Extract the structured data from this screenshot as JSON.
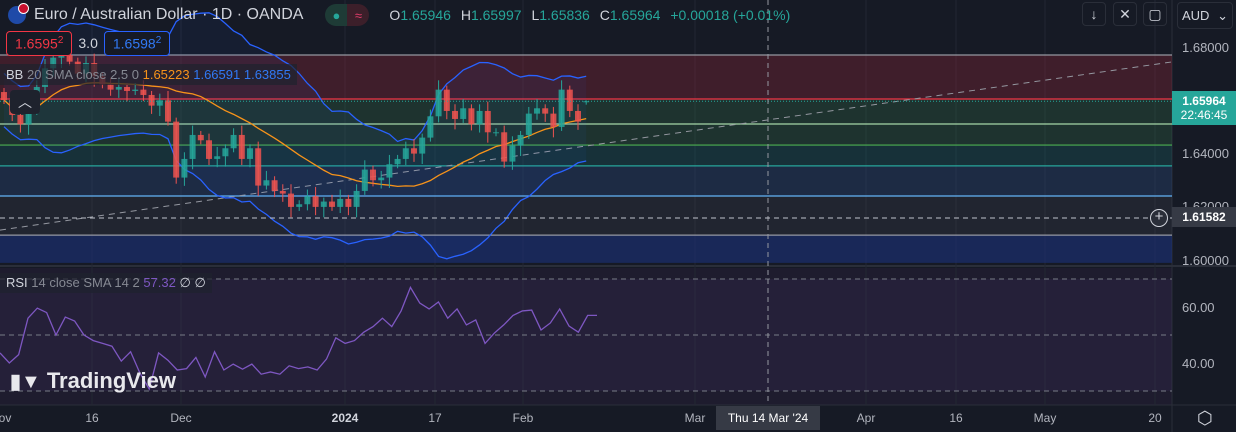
{
  "header": {
    "title": "Euro / Australian Dollar · 1D · OANDA",
    "status_icon": "market-open-dot",
    "wave_icon": "≈",
    "ohlc": {
      "o_label": "O",
      "o": "1.65946",
      "h_label": "H",
      "h": "1.65997",
      "l_label": "L",
      "l": "1.65836",
      "c_label": "C",
      "c": "1.65964",
      "change": "+0.00018 (+0.01%)"
    }
  },
  "quote": {
    "sell": "1.6595",
    "sell_sup": "2",
    "spread": "3.0",
    "buy": "1.6598",
    "buy_sup": "2"
  },
  "bb_legend": {
    "name": "BB",
    "params": "20 SMA close 2.5 0",
    "basis": "1.65223",
    "upper": "1.66591",
    "lower": "1.63855"
  },
  "rsi_legend": {
    "name": "RSI",
    "params": "14 close SMA 14 2",
    "value": "57.32",
    "na1": "∅",
    "na2": "∅"
  },
  "toolbar": {
    "currency": "AUD",
    "down_icon": "↓",
    "collapse_icon": "⌄",
    "fullscreen_icon": "▢",
    "settings_icon": "⬡"
  },
  "price_axis": {
    "ticks": [
      "1.68000",
      "1.64000",
      "1.62000",
      "1.60000"
    ],
    "last_price": "1.65964",
    "countdown": "22:46:45",
    "crosshair_price": "1.61582"
  },
  "rsi_axis": {
    "ticks": [
      "60.00",
      "40.00"
    ]
  },
  "time_axis": {
    "labels": [
      "ov",
      "16",
      "Dec",
      "2024",
      "17",
      "Feb",
      "Mar",
      "Apr",
      "16",
      "May",
      "20"
    ],
    "crosshair_date": "Thu 14 Mar '24"
  },
  "logo": "TradingView",
  "colors": {
    "up": "#26a69a",
    "down": "#ef5350",
    "bb_basis": "#f7931a",
    "bb_band": "#2962ff",
    "rsi": "#7e57c2",
    "accent": "#26a69a"
  },
  "chart_data": {
    "type": "candlestick",
    "symbol": "EURAUD",
    "interval": "1D",
    "ylim": [
      1.597,
      1.684
    ],
    "last_bar": {
      "open": 1.65946,
      "high": 1.65997,
      "low": 1.65836,
      "close": 1.65964
    },
    "close": [
      1.6601,
      1.6545,
      1.651,
      1.656,
      1.665,
      1.672,
      1.676,
      1.677,
      1.6745,
      1.67,
      1.674,
      1.669,
      1.666,
      1.664,
      1.665,
      1.6635,
      1.664,
      1.662,
      1.658,
      1.66,
      1.652,
      1.631,
      1.638,
      1.647,
      1.645,
      1.638,
      1.639,
      1.642,
      1.647,
      1.638,
      1.642,
      1.628,
      1.63,
      1.626,
      1.625,
      1.62,
      1.621,
      1.624,
      1.62,
      1.622,
      1.62,
      1.623,
      1.62,
      1.626,
      1.634,
      1.63,
      1.631,
      1.636,
      1.638,
      1.642,
      1.64,
      1.646,
      1.654,
      1.664,
      1.656,
      1.653,
      1.657,
      1.651,
      1.656,
      1.648,
      1.648,
      1.637,
      1.643,
      1.647,
      1.655,
      1.657,
      1.655,
      1.65,
      1.664,
      1.656,
      1.652,
      1.65964
    ],
    "bollinger": {
      "length": 20,
      "mult": 2.5
    },
    "levels": [
      {
        "price": 1.677,
        "color": "#9598a1"
      },
      {
        "price": 1.6605,
        "color": "#f23645"
      },
      {
        "price": 1.6511,
        "color": "#a5d6a7"
      },
      {
        "price": 1.6432,
        "color": "#4caf50"
      },
      {
        "price": 1.6354,
        "color": "#26a69a"
      },
      {
        "price": 1.6241,
        "color": "#64b5f6"
      },
      {
        "price": 1.6094,
        "color": "#9598a1"
      }
    ],
    "zones": [
      {
        "from": 1.677,
        "to": 1.6605,
        "color": "rgba(140,40,55,0.35)"
      },
      {
        "from": 1.6605,
        "to": 1.6432,
        "color": "rgba(45,100,65,0.35)"
      },
      {
        "from": 1.6432,
        "to": 1.6354,
        "color": "rgba(25,95,95,0.35)"
      },
      {
        "from": 1.6354,
        "to": 1.6241,
        "color": "rgba(40,70,115,0.4)"
      },
      {
        "from": 1.6241,
        "to": 1.6094,
        "color": "rgba(60,62,75,0.3)"
      },
      {
        "from": 1.6094,
        "to": 1.599,
        "color": "rgba(28,48,115,0.65)"
      }
    ],
    "trendline": {
      "from_price": 1.6113,
      "to_price": 1.6744
    },
    "rsi": {
      "ylim": [
        27,
        73
      ],
      "levels": [
        70,
        50,
        30
      ],
      "values": [
        43.6,
        40,
        43,
        56,
        59.6,
        58,
        50,
        56.4,
        55,
        50,
        48,
        47,
        46,
        40.7,
        44,
        36.4,
        30.7,
        43.6,
        41,
        37.5,
        38,
        42,
        35,
        44,
        37.5,
        39.6,
        37.8,
        39.6,
        36,
        36.8,
        36,
        39,
        38,
        38.6,
        37.5,
        41.4,
        49,
        47,
        48,
        51,
        53,
        56,
        53,
        58.6,
        67,
        61.4,
        59.3,
        61.8,
        56,
        59.3,
        53.6,
        55.4,
        47,
        50.7,
        53.6,
        57,
        58.6,
        58.9,
        51.8,
        54.3,
        59.3,
        53.2,
        51,
        57,
        57
      ]
    }
  }
}
